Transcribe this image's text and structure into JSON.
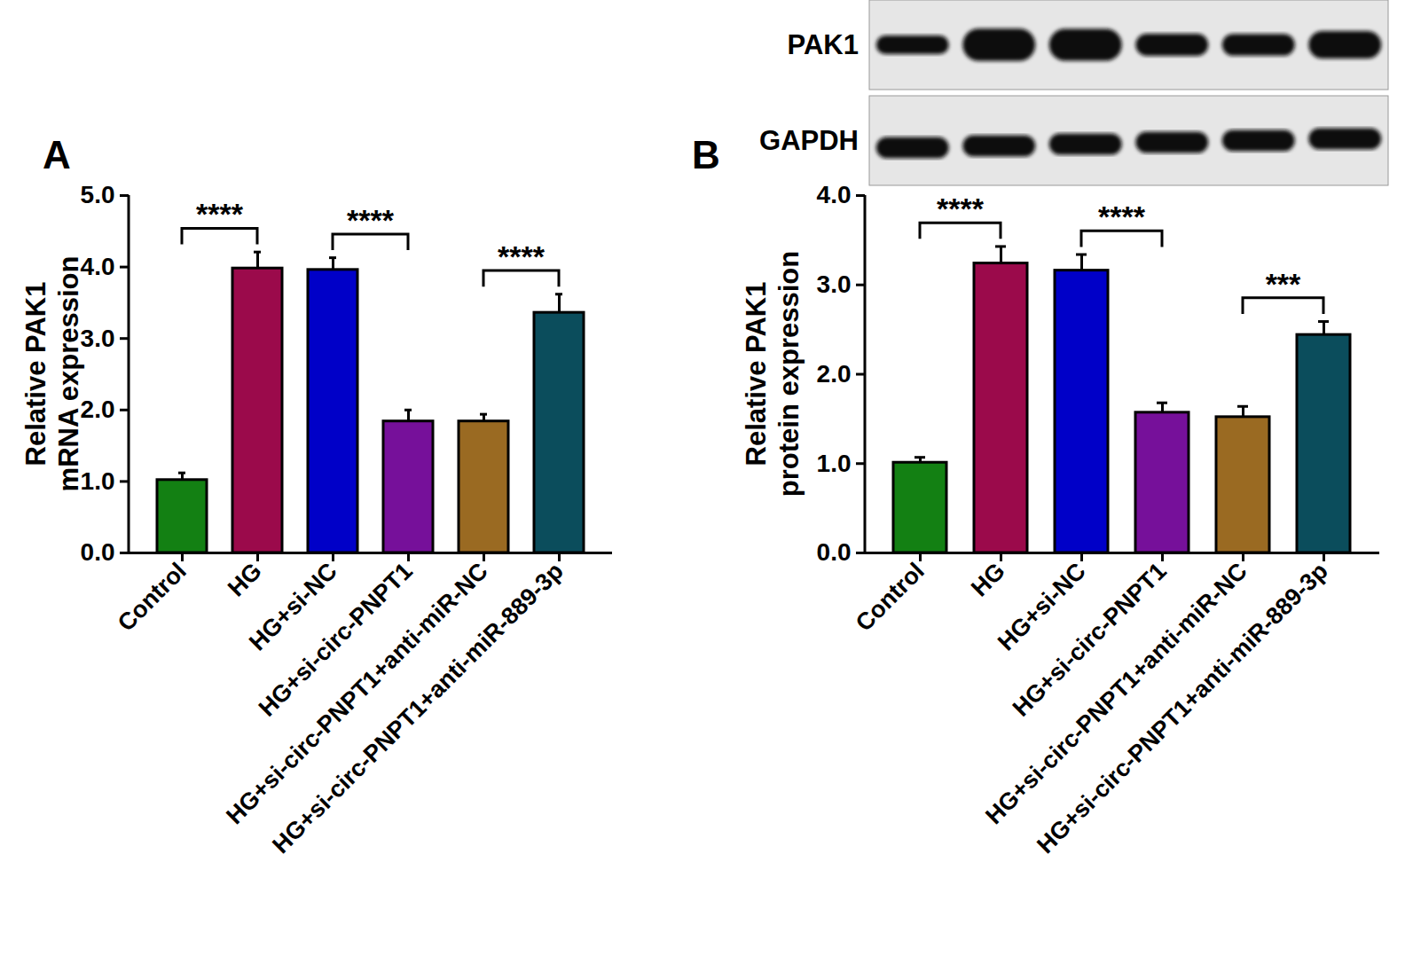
{
  "chart_data": [
    {
      "type": "bar",
      "title": "A",
      "y_label": "Relative PAK1\nmRNA expression",
      "categories": [
        "Control",
        "HG",
        "HG+si-NC",
        "HG+si-circ-PNPT1",
        "HG+si-circ-PNPT1+anti-miR-NC",
        "HG+si-circ-PNPT1+anti-miR-889-3p"
      ],
      "values": [
        1.02,
        3.98,
        3.96,
        1.84,
        1.84,
        3.36
      ],
      "errors": [
        0.1,
        0.23,
        0.17,
        0.16,
        0.1,
        0.26
      ],
      "colors": [
        "#138013",
        "#9b0a4b",
        "#0000c8",
        "#76109a",
        "#9a6a22",
        "#0b4d5c"
      ],
      "ylim": [
        0,
        5
      ],
      "yticks": [
        0,
        1,
        2,
        3,
        4,
        5
      ],
      "significance": [
        {
          "from": "Control",
          "to": "HG",
          "label": "****"
        },
        {
          "from": "HG+si-NC",
          "to": "HG+si-circ-PNPT1",
          "label": "****"
        },
        {
          "from": "HG+si-circ-PNPT1+anti-miR-NC",
          "to": "HG+si-circ-PNPT1+anti-miR-889-3p",
          "label": "****"
        }
      ]
    },
    {
      "type": "bar",
      "title": "B",
      "y_label": "Relative PAK1\nprotein expression",
      "categories": [
        "Control",
        "HG",
        "HG+si-NC",
        "HG+si-circ-PNPT1",
        "HG+si-circ-PNPT1+anti-miR-NC",
        "HG+si-circ-PNPT1+anti-miR-889-3p"
      ],
      "values": [
        1.01,
        3.24,
        3.16,
        1.57,
        1.52,
        2.44
      ],
      "errors": [
        0.06,
        0.19,
        0.18,
        0.11,
        0.12,
        0.15
      ],
      "colors": [
        "#138013",
        "#9b0a4b",
        "#0000c8",
        "#76109a",
        "#9a6a22",
        "#0b4d5c"
      ],
      "ylim": [
        0,
        4
      ],
      "yticks": [
        0,
        1,
        2,
        3,
        4
      ],
      "significance": [
        {
          "from": "Control",
          "to": "HG",
          "label": "****"
        },
        {
          "from": "HG+si-NC",
          "to": "HG+si-circ-PNPT1",
          "label": "****"
        },
        {
          "from": "HG+si-circ-PNPT1+anti-miR-NC",
          "to": "HG+si-circ-PNPT1+anti-miR-889-3p",
          "label": "***"
        }
      ],
      "blot": {
        "rows": [
          "PAK1",
          "GAPDH"
        ]
      }
    }
  ]
}
